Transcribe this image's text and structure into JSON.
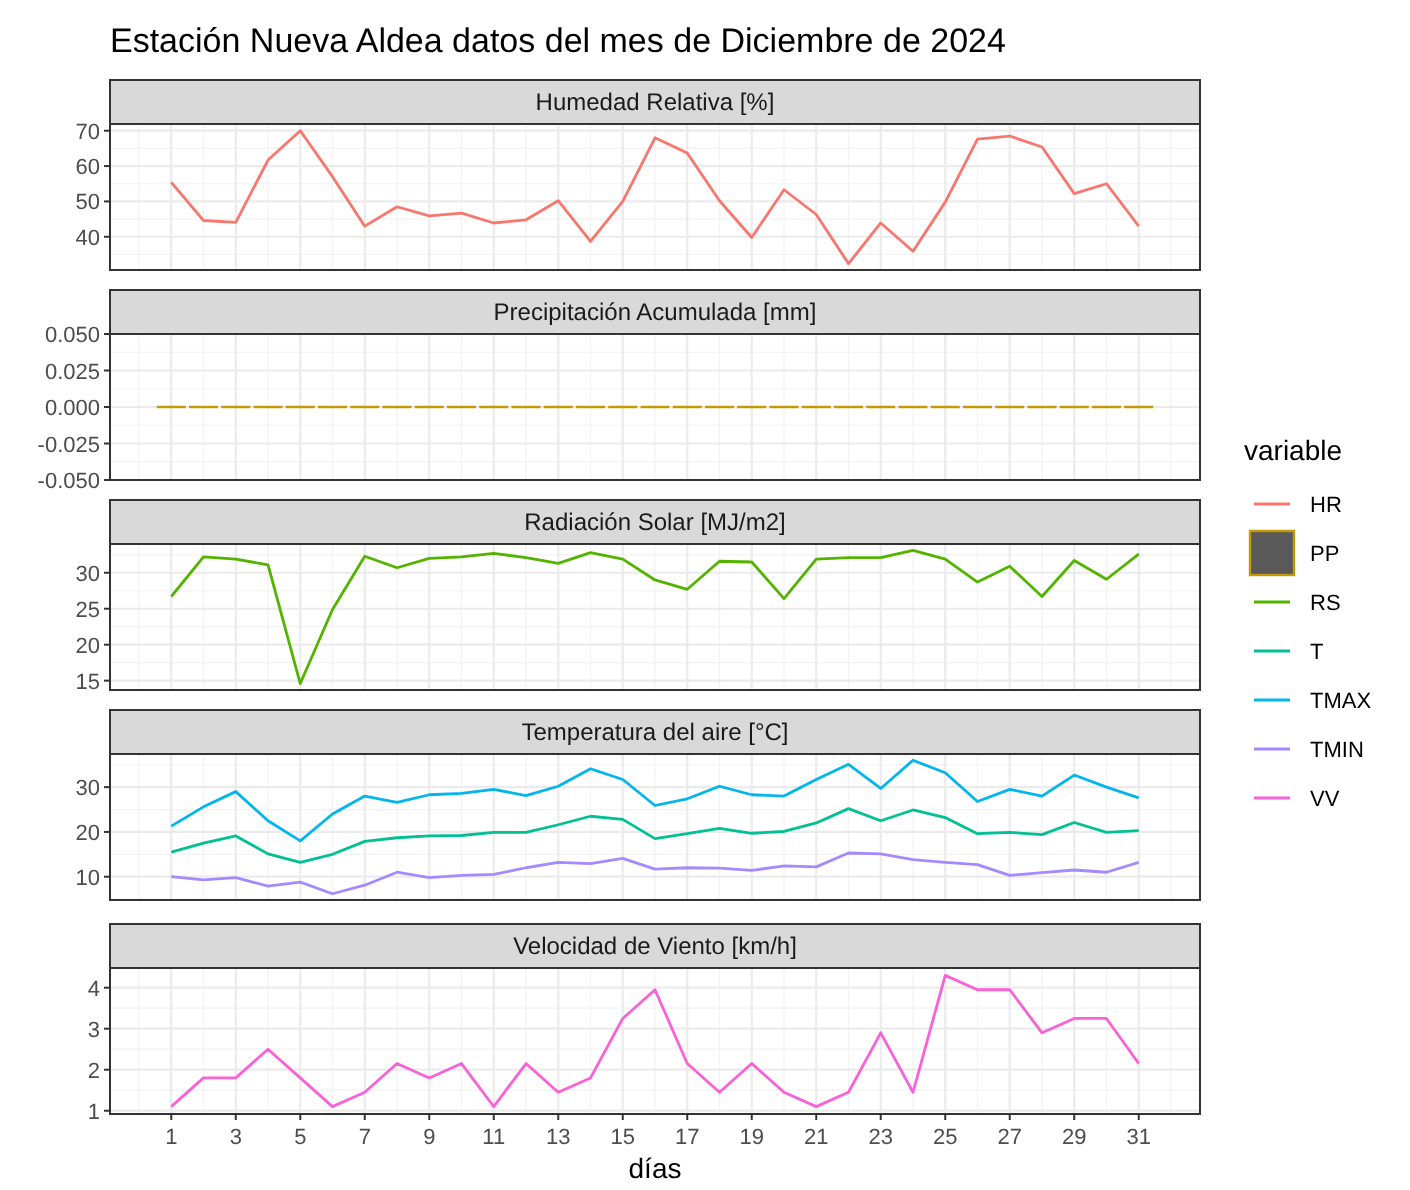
{
  "chart_data": [
    {
      "type": "line",
      "title": "Estación Nueva Aldea datos del mes de Diciembre de 2024",
      "subtitle": "Humedad Relativa [%]",
      "legend_title": "variable",
      "legend": "right",
      "grid": true,
      "tick_labels": "y",
      "x": [
        1,
        2,
        3,
        4,
        5,
        6,
        7,
        8,
        9,
        10,
        11,
        12,
        13,
        14,
        15,
        16,
        17,
        18,
        19,
        20,
        21,
        22,
        23,
        24,
        25,
        26,
        27,
        28,
        29,
        30,
        31
      ],
      "xlim": [
        -0.9,
        32.9
      ],
      "xticks": [
        1,
        3,
        5,
        7,
        9,
        11,
        13,
        15,
        17,
        19,
        21,
        23,
        25,
        27,
        29,
        31
      ],
      "ylim": [
        30.6,
        71.9
      ],
      "yticks": [
        40,
        50,
        60,
        70
      ],
      "series": [
        {
          "name": "HR",
          "color": "#f8766d",
          "values": [
            55.4,
            44.6,
            44.1,
            61.7,
            70,
            57,
            43,
            48.5,
            45.9,
            46.7,
            43.9,
            44.8,
            50.2,
            38.7,
            50,
            68,
            63.7,
            50.2,
            39.8,
            53.3,
            46.3,
            32.4,
            43.9,
            35.9,
            49.8,
            67.6,
            68.5,
            65.4,
            52.2,
            55,
            43
          ]
        }
      ]
    },
    {
      "type": "bar",
      "subtitle": "Precipitación Acumulada [mm]",
      "legend": "right",
      "grid": true,
      "tick_labels": "y",
      "x": [
        1,
        2,
        3,
        4,
        5,
        6,
        7,
        8,
        9,
        10,
        11,
        12,
        13,
        14,
        15,
        16,
        17,
        18,
        19,
        20,
        21,
        22,
        23,
        24,
        25,
        26,
        27,
        28,
        29,
        30,
        31
      ],
      "xlim": [
        -0.9,
        32.9
      ],
      "xticks": [
        1,
        3,
        5,
        7,
        9,
        11,
        13,
        15,
        17,
        19,
        21,
        23,
        25,
        27,
        29,
        31
      ],
      "ylim": [
        -0.05,
        0.05
      ],
      "yticks": [
        {
          "value": -0.05,
          "label": "-0.050"
        },
        {
          "value": -0.025,
          "label": "-0.025"
        },
        {
          "value": 0,
          "label": "0.000"
        },
        {
          "value": 0.025,
          "label": "0.025"
        },
        {
          "value": 0.05,
          "label": "0.050"
        }
      ],
      "series": [
        {
          "name": "PP",
          "color": "#c49a00",
          "values": [
            0,
            0,
            0,
            0,
            0,
            0,
            0,
            0,
            0,
            0,
            0,
            0,
            0,
            0,
            0,
            0,
            0,
            0,
            0,
            0,
            0,
            0,
            0,
            0,
            0,
            0,
            0,
            0,
            0,
            0,
            0
          ]
        }
      ]
    },
    {
      "type": "line",
      "subtitle": "Radiación Solar [MJ/m2]",
      "legend": "right",
      "grid": true,
      "tick_labels": "y",
      "x": [
        1,
        2,
        3,
        4,
        5,
        6,
        7,
        8,
        9,
        10,
        11,
        12,
        13,
        14,
        15,
        16,
        17,
        18,
        19,
        20,
        21,
        22,
        23,
        24,
        25,
        26,
        27,
        28,
        29,
        30,
        31
      ],
      "xlim": [
        -0.9,
        32.9
      ],
      "xticks": [
        1,
        3,
        5,
        7,
        9,
        11,
        13,
        15,
        17,
        19,
        21,
        23,
        25,
        27,
        29,
        31
      ],
      "ylim": [
        13.7,
        34.0
      ],
      "yticks": [
        15,
        20,
        25,
        30
      ],
      "series": [
        {
          "name": "RS",
          "color": "#53b400",
          "values": [
            26.7,
            32.2,
            31.9,
            31.1,
            14.6,
            24.9,
            32.3,
            30.7,
            32,
            32.2,
            32.7,
            32.1,
            31.3,
            32.8,
            31.9,
            29,
            27.7,
            31.6,
            31.5,
            26.4,
            31.9,
            32.1,
            32.1,
            33.1,
            31.9,
            28.7,
            30.9,
            26.7,
            31.7,
            29.1,
            32.6
          ]
        }
      ]
    },
    {
      "type": "line",
      "subtitle": "Temperatura del aire [°C]",
      "legend": "right",
      "grid": true,
      "tick_labels": "y",
      "x": [
        1,
        2,
        3,
        4,
        5,
        6,
        7,
        8,
        9,
        10,
        11,
        12,
        13,
        14,
        15,
        16,
        17,
        18,
        19,
        20,
        21,
        22,
        23,
        24,
        25,
        26,
        27,
        28,
        29,
        30,
        31
      ],
      "xlim": [
        -0.9,
        32.9
      ],
      "xticks": [
        1,
        3,
        5,
        7,
        9,
        11,
        13,
        15,
        17,
        19,
        21,
        23,
        25,
        27,
        29,
        31
      ],
      "ylim": [
        4.8,
        37.4
      ],
      "yticks": [
        10,
        20,
        30
      ],
      "series": [
        {
          "name": "T",
          "color": "#00c094",
          "values": [
            15.5,
            17.5,
            19.1,
            15.1,
            13.2,
            15,
            17.9,
            18.7,
            19.1,
            19.2,
            19.9,
            19.9,
            21.6,
            23.5,
            22.8,
            18.5,
            19.6,
            20.8,
            19.7,
            20.1,
            22,
            25.2,
            22.5,
            24.9,
            23.2,
            19.6,
            19.9,
            19.4,
            22.1,
            19.9,
            20.3
          ]
        },
        {
          "name": "TMAX",
          "color": "#00b6eb",
          "values": [
            21.3,
            25.6,
            29,
            22.5,
            18,
            24,
            28,
            26.6,
            28.3,
            28.6,
            29.5,
            28.1,
            30.2,
            34.1,
            31.7,
            25.9,
            27.4,
            30.2,
            28.3,
            28,
            31.7,
            35.1,
            29.7,
            36,
            33.2,
            26.8,
            29.5,
            28,
            32.7,
            30,
            27.6
          ]
        },
        {
          "name": "TMIN",
          "color": "#a58aff",
          "values": [
            10,
            9.3,
            9.8,
            7.9,
            8.8,
            6.2,
            8.1,
            11,
            9.8,
            10.3,
            10.5,
            12,
            13.2,
            12.9,
            14.1,
            11.7,
            12,
            11.9,
            11.4,
            12.4,
            12.2,
            15.3,
            15.1,
            13.8,
            13.2,
            12.7,
            10.3,
            10.9,
            11.5,
            11,
            13.2
          ]
        }
      ]
    },
    {
      "type": "line",
      "subtitle": "Velocidad de Viento [km/h]",
      "xlabel": "días",
      "legend": "right",
      "grid": true,
      "x": [
        1,
        2,
        3,
        4,
        5,
        6,
        7,
        8,
        9,
        10,
        11,
        12,
        13,
        14,
        15,
        16,
        17,
        18,
        19,
        20,
        21,
        22,
        23,
        24,
        25,
        26,
        27,
        28,
        29,
        30,
        31
      ],
      "xlim": [
        -0.9,
        32.9
      ],
      "xticks": [
        1,
        3,
        5,
        7,
        9,
        11,
        13,
        15,
        17,
        19,
        21,
        23,
        25,
        27,
        29,
        31
      ],
      "ylim": [
        0.92,
        4.48
      ],
      "yticks": [
        1,
        2,
        3,
        4
      ],
      "series": [
        {
          "name": "VV",
          "color": "#fb61d7",
          "values": [
            1.1,
            1.8,
            1.8,
            2.5,
            1.8,
            1.1,
            1.45,
            2.15,
            1.8,
            2.15,
            1.1,
            2.15,
            1.45,
            1.8,
            3.25,
            3.95,
            2.15,
            1.45,
            2.15,
            1.45,
            1.1,
            1.45,
            2.9,
            1.45,
            4.3,
            3.95,
            3.95,
            2.9,
            3.25,
            3.25,
            2.15
          ]
        }
      ]
    }
  ]
}
